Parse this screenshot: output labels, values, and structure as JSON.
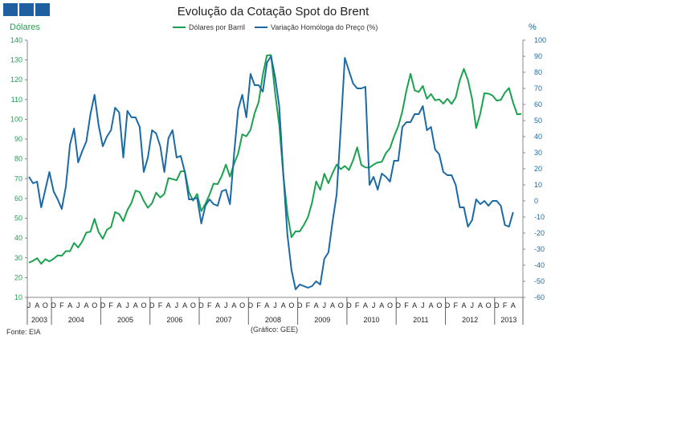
{
  "header": {
    "logo_color": "#1f5fa0"
  },
  "chart_data": {
    "type": "line",
    "title": "Evolução da Cotação Spot do Brent",
    "ylabel_left": "Dólares",
    "ylabel_right": "%",
    "ylim_left": [
      10,
      140
    ],
    "ylim_right": [
      -60,
      100
    ],
    "yticks_left": [
      "140",
      "130",
      "120",
      "110",
      "100",
      "90",
      "80",
      "70",
      "60",
      "50",
      "40",
      "30",
      "20",
      "10"
    ],
    "yticks_right": [
      "100",
      "90",
      "80",
      "70",
      "60",
      "50",
      "40",
      "30",
      "20",
      "10",
      "0",
      "-10",
      "-20",
      "-30",
      "-40",
      "-50",
      "-60"
    ],
    "month_labels": [
      "J",
      "A",
      "O",
      "D",
      "F",
      "A",
      "J",
      "A",
      "O",
      "D",
      "F",
      "A",
      "J",
      "A",
      "O",
      "D",
      "F",
      "A",
      "J",
      "A",
      "O",
      "D",
      "F",
      "A",
      "J",
      "A",
      "O",
      "D",
      "F",
      "A",
      "J",
      "A",
      "O",
      "D",
      "F",
      "A",
      "J",
      "A",
      "O",
      "D",
      "F",
      "A",
      "J",
      "A",
      "O",
      "D",
      "F",
      "A",
      "J",
      "A",
      "O",
      "D",
      "F",
      "A",
      "J",
      "A",
      "O",
      "D",
      "F",
      "A"
    ],
    "years": [
      "2003",
      "2004",
      "2005",
      "2006",
      "2007",
      "2008",
      "2009",
      "2010",
      "2011",
      "2012",
      "2013"
    ],
    "legend_position": "top",
    "grid": false,
    "series": [
      {
        "name": "Dólares por Barril",
        "axis": "left",
        "color": "#1aa24f",
        "values": [
          27.5,
          28.5,
          29.8,
          27.0,
          29.3,
          28.2,
          29.5,
          31.2,
          31.0,
          33.4,
          33.3,
          37.5,
          35.2,
          38.3,
          42.8,
          43.2,
          49.7,
          43.0,
          39.6,
          44.2,
          45.5,
          53.1,
          52.1,
          48.5,
          54.1,
          57.8,
          64.0,
          63.2,
          58.8,
          55.3,
          57.6,
          62.9,
          60.5,
          62.3,
          70.3,
          69.8,
          69.2,
          73.7,
          73.8,
          63.2,
          58.9,
          62.3,
          53.6,
          57.3,
          61.9,
          67.5,
          67.3,
          71.4,
          77.1,
          71.0,
          77.6,
          82.7,
          92.4,
          91.4,
          94.7,
          103.1,
          108.9,
          122.6,
          132.3,
          132.5,
          113.3,
          97.3,
          71.8,
          52.5,
          40.4,
          43.4,
          43.3,
          46.6,
          50.6,
          57.9,
          68.6,
          64.4,
          72.5,
          67.7,
          72.8,
          77.1,
          74.8,
          76.4,
          74.3,
          79.3,
          85.8,
          77.0,
          75.7,
          75.6,
          77.1,
          78.2,
          78.5,
          82.9,
          85.4,
          91.4,
          96.5,
          104.0,
          114.6,
          123.0,
          114.7,
          113.8,
          116.9,
          110.4,
          112.8,
          109.6,
          110.1,
          107.9,
          110.4,
          107.8,
          111.0,
          119.7,
          125.5,
          119.8,
          110.4,
          95.6,
          102.8,
          113.2,
          113.0,
          112.0,
          109.5,
          109.8,
          113.5,
          115.8,
          108.4,
          102.5,
          102.7
        ]
      },
      {
        "name": "Variação Homóloga do Preço (%)",
        "axis": "right",
        "color": "#1b6aa5",
        "values": [
          15,
          11,
          12,
          -4,
          7,
          18,
          6,
          1,
          -5,
          9,
          35,
          45,
          24,
          31,
          37,
          54,
          66,
          47,
          34,
          40,
          44,
          58,
          55,
          27,
          56,
          52,
          52,
          46,
          18,
          27,
          44,
          42,
          34,
          18,
          39,
          44,
          27,
          28,
          18,
          1,
          1,
          2,
          -14,
          -3,
          1,
          -2,
          -3,
          6,
          7,
          -2,
          29,
          57,
          66,
          52,
          79,
          72,
          72,
          68,
          86,
          90,
          77,
          59,
          17,
          -21,
          -43,
          -55,
          -52,
          -53,
          -54,
          -53,
          -50,
          -52,
          -36,
          -32,
          -13,
          4,
          45,
          89,
          81,
          73,
          70,
          70,
          71,
          10,
          15,
          7,
          17,
          15,
          12,
          25,
          25,
          46,
          49,
          49,
          54,
          54,
          59,
          44,
          46,
          32,
          29,
          18,
          16,
          16,
          10,
          -4,
          -4,
          -16,
          -12,
          1,
          -2,
          0,
          -3,
          0,
          0,
          -3,
          -15,
          -16,
          -7
        ]
      }
    ]
  },
  "footer": {
    "source": "Fonte: EIA",
    "credit": "(Gráfico: GEE)"
  }
}
